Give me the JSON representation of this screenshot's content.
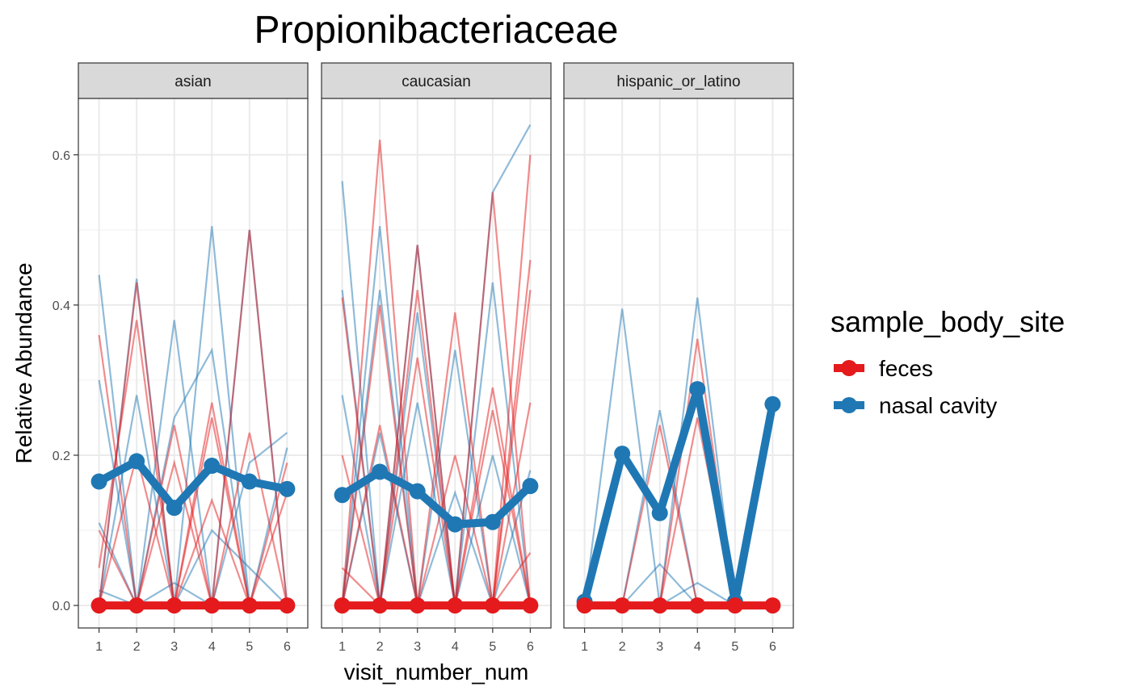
{
  "chart_data": {
    "type": "line",
    "title": "Propionibacteriaceae",
    "xlabel": "visit_number_num",
    "ylabel": "Relative Abundance",
    "x_ticks": [
      "1",
      "2",
      "3",
      "4",
      "5",
      "6"
    ],
    "y_ticks": [
      "0.0",
      "0.2",
      "0.4",
      "0.6"
    ],
    "ylim": [
      -0.03,
      0.675
    ],
    "xlim": [
      0.45,
      6.55
    ],
    "grid": true,
    "legend": {
      "title": "sample_body_site",
      "position": "right",
      "entries": [
        {
          "label": "feces",
          "color": "#e41a1c"
        },
        {
          "label": "nasal cavity",
          "color": "#1f78b4"
        }
      ]
    },
    "facets": [
      {
        "name": "asian",
        "series": [
          {
            "name": "feces",
            "x": [
              1,
              2,
              3,
              4,
              5,
              6
            ],
            "values": [
              0.0,
              0.0,
              0.0,
              0.0,
              0.0,
              0.0
            ]
          },
          {
            "name": "nasal cavity",
            "x": [
              1,
              2,
              3,
              4,
              5,
              6
            ],
            "values": [
              0.165,
              0.192,
              0.13,
              0.186,
              0.165,
              0.155
            ]
          }
        ],
        "individual_traces": {
          "feces": [
            [
              0.0,
              0.43,
              0.0,
              0.0,
              0.0,
              0.0
            ],
            [
              0.36,
              0.0,
              0.0,
              0.27,
              0.0,
              0.0
            ],
            [
              0.0,
              0.0,
              0.19,
              0.0,
              0.5,
              0.0
            ],
            [
              0.05,
              0.38,
              0.0,
              0.0,
              0.0,
              0.19
            ],
            [
              0.0,
              0.0,
              0.0,
              0.14,
              0.0,
              0.0
            ],
            [
              0.0,
              0.2,
              0.0,
              0.0,
              0.23,
              0.0
            ],
            [
              0.0,
              0.0,
              0.24,
              0.0,
              0.0,
              0.15
            ],
            [
              0.1,
              0.0,
              0.0,
              0.25,
              0.0,
              0.0
            ]
          ],
          "nasal cavity": [
            [
              0.44,
              0.0,
              0.38,
              0.0,
              0.0,
              0.0
            ],
            [
              0.0,
              0.435,
              0.0,
              0.0,
              0.19,
              0.23
            ],
            [
              0.3,
              0.0,
              0.0,
              0.505,
              0.0,
              0.0
            ],
            [
              0.0,
              0.0,
              0.25,
              0.34,
              0.0,
              0.21
            ],
            [
              0.11,
              0.0,
              0.0,
              0.0,
              0.5,
              0.0
            ],
            [
              0.0,
              0.0,
              0.0,
              0.1,
              0.05,
              0.0
            ],
            [
              0.02,
              0.0,
              0.03,
              0.0,
              0.0,
              0.0
            ],
            [
              0.0,
              0.28,
              0.0,
              0.0,
              0.0,
              0.0
            ]
          ]
        }
      },
      {
        "name": "caucasian",
        "series": [
          {
            "name": "feces",
            "x": [
              1,
              2,
              3,
              4,
              5,
              6
            ],
            "values": [
              0.0,
              0.0,
              0.0,
              0.0,
              0.0,
              0.0
            ]
          },
          {
            "name": "nasal cavity",
            "x": [
              1,
              2,
              3,
              4,
              5,
              6
            ],
            "values": [
              0.147,
              0.178,
              0.152,
              0.108,
              0.111,
              0.159
            ]
          }
        ],
        "individual_traces": {
          "feces": [
            [
              0.0,
              0.62,
              0.0,
              0.0,
              0.0,
              0.0
            ],
            [
              0.0,
              0.0,
              0.48,
              0.0,
              0.0,
              0.0
            ],
            [
              0.0,
              0.0,
              0.0,
              0.0,
              0.55,
              0.0
            ],
            [
              0.0,
              0.0,
              0.0,
              0.39,
              0.0,
              0.6
            ],
            [
              0.41,
              0.0,
              0.0,
              0.0,
              0.0,
              0.46
            ],
            [
              0.0,
              0.0,
              0.42,
              0.0,
              0.0,
              0.27
            ],
            [
              0.0,
              0.24,
              0.0,
              0.0,
              0.29,
              0.0
            ],
            [
              0.05,
              0.0,
              0.0,
              0.0,
              0.0,
              0.42
            ],
            [
              0.2,
              0.0,
              0.0,
              0.0,
              0.0,
              0.0
            ],
            [
              0.0,
              0.0,
              0.33,
              0.0,
              0.26,
              0.0
            ],
            [
              0.0,
              0.4,
              0.0,
              0.0,
              0.0,
              0.07
            ],
            [
              0.0,
              0.0,
              0.0,
              0.2,
              0.0,
              0.0
            ]
          ],
          "nasal cavity": [
            [
              0.565,
              0.0,
              0.0,
              0.0,
              0.0,
              0.0
            ],
            [
              0.0,
              0.505,
              0.0,
              0.0,
              0.0,
              0.0
            ],
            [
              0.0,
              0.0,
              0.48,
              0.0,
              0.0,
              0.0
            ],
            [
              0.0,
              0.0,
              0.0,
              0.34,
              0.0,
              0.0
            ],
            [
              0.0,
              0.0,
              0.0,
              0.0,
              0.55,
              0.64
            ],
            [
              0.42,
              0.0,
              0.0,
              0.0,
              0.43,
              0.0
            ],
            [
              0.0,
              0.42,
              0.0,
              0.0,
              0.0,
              0.0
            ],
            [
              0.0,
              0.0,
              0.39,
              0.0,
              0.0,
              0.18
            ],
            [
              0.28,
              0.0,
              0.0,
              0.0,
              0.0,
              0.0
            ],
            [
              0.0,
              0.0,
              0.0,
              0.15,
              0.0,
              0.0
            ],
            [
              0.0,
              0.23,
              0.0,
              0.0,
              0.0,
              0.0
            ],
            [
              0.0,
              0.0,
              0.27,
              0.0,
              0.2,
              0.0
            ]
          ]
        }
      },
      {
        "name": "hispanic_or_latino",
        "series": [
          {
            "name": "feces",
            "x": [
              1,
              2,
              3,
              4,
              5,
              6
            ],
            "values": [
              0.0,
              0.0,
              0.0,
              0.0,
              0.0,
              0.0
            ]
          },
          {
            "name": "nasal cavity",
            "x": [
              1,
              2,
              3,
              4,
              5,
              6
            ],
            "values": [
              0.005,
              0.202,
              0.123,
              0.288,
              0.005,
              0.268
            ]
          }
        ],
        "individual_traces": {
          "feces": [
            [
              0.0,
              0.0,
              0.24,
              0.0,
              0.0,
              0.0
            ],
            [
              0.0,
              0.0,
              0.0,
              0.355,
              0.0,
              0.0
            ],
            [
              0.0,
              0.0,
              0.0,
              0.25,
              0.0,
              0.0
            ]
          ],
          "nasal cavity": [
            [
              0.0,
              0.395,
              0.0,
              0.0,
              0.0,
              0.0
            ],
            [
              0.0,
              0.0,
              0.26,
              0.0,
              0.0,
              0.0
            ],
            [
              0.0,
              0.0,
              0.0,
              0.41,
              0.0,
              0.0
            ],
            [
              0.0,
              0.0,
              0.055,
              0.0,
              0.0,
              0.0
            ],
            [
              0.0,
              0.0,
              0.0,
              0.03,
              0.0,
              0.0
            ]
          ]
        }
      }
    ]
  }
}
